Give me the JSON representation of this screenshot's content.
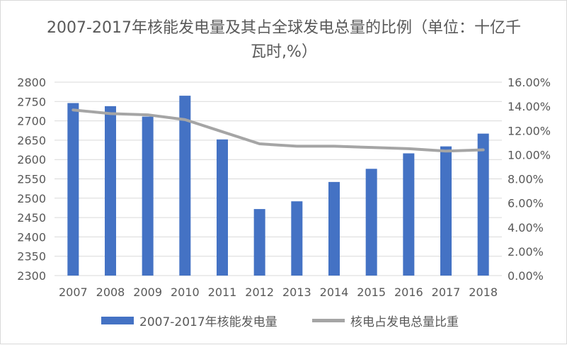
{
  "chart_data": {
    "type": "bar",
    "title": "2007-2017年核能发电量及其占全球发电总量的比例（单位：十亿千瓦时,%）",
    "xlabel": "",
    "ylabel": "",
    "categories": [
      "2007",
      "2008",
      "2009",
      "2010",
      "2011",
      "2012",
      "2013",
      "2014",
      "2015",
      "2016",
      "2017",
      "2018"
    ],
    "ylim": [
      2300,
      2800
    ],
    "y_ticks": [
      "2300",
      "2350",
      "2400",
      "2450",
      "2500",
      "2550",
      "2600",
      "2650",
      "2700",
      "2750",
      "2800"
    ],
    "y2lim": [
      0,
      16
    ],
    "y2_ticks": [
      "0.00%",
      "2.00%",
      "4.00%",
      "6.00%",
      "8.00%",
      "10.00%",
      "12.00%",
      "14.00%",
      "16.00%"
    ],
    "grid": true,
    "legend_position": "bottom",
    "series": [
      {
        "name": "2007-2017年核能发电量",
        "type": "bar",
        "axis": "left",
        "color": "#4472c4",
        "values": [
          2746,
          2738,
          2711,
          2765,
          2652,
          2472,
          2492,
          2542,
          2576,
          2616,
          2634,
          2667
        ]
      },
      {
        "name": "核电占发电总量比重",
        "type": "line",
        "axis": "right",
        "color": "#a5a5a5",
        "values": [
          13.7,
          13.4,
          13.3,
          12.9,
          11.9,
          10.9,
          10.7,
          10.7,
          10.6,
          10.5,
          10.3,
          10.4
        ]
      }
    ]
  }
}
